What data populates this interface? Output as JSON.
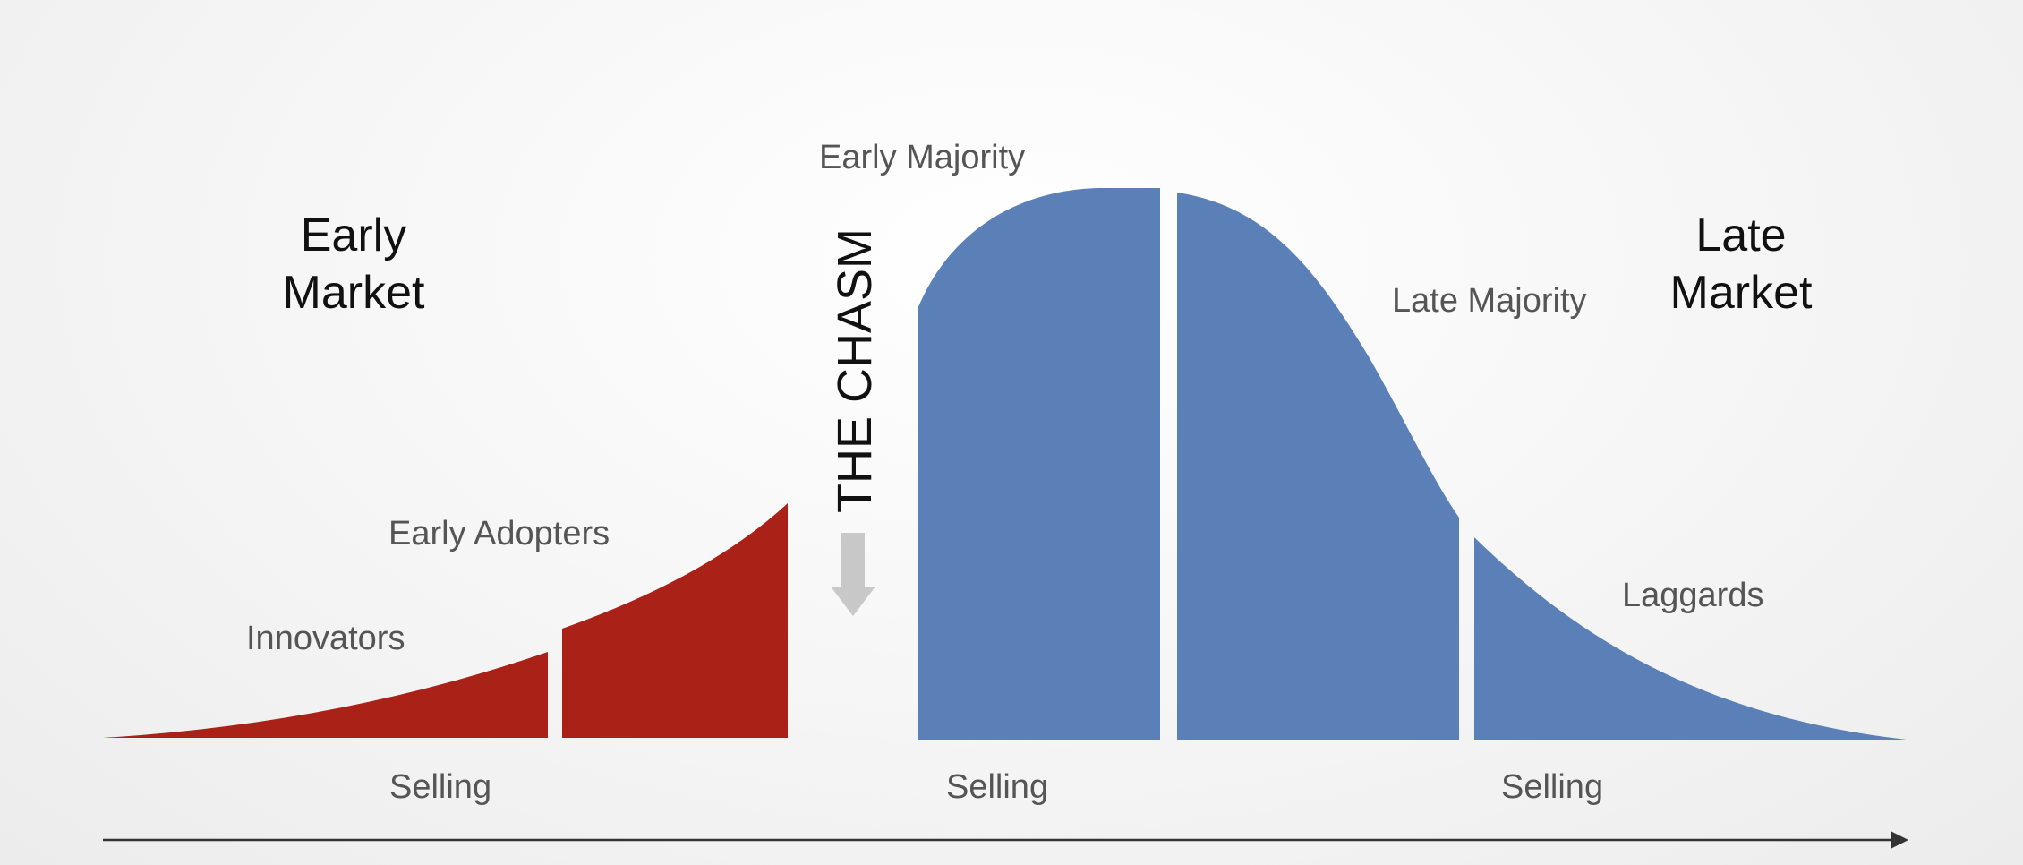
{
  "diagram": {
    "early_market": {
      "line1": "Early",
      "line2": "Market"
    },
    "late_market": {
      "line1": "Late",
      "line2": "Market"
    },
    "segments": {
      "innovators": "Innovators",
      "early_adopters": "Early Adopters",
      "early_majority": "Early Majority",
      "late_majority": "Late Majority",
      "laggards": "Laggards"
    },
    "chasm_label": "THE CHASM",
    "selling": {
      "left": "Selling",
      "middle": "Selling",
      "right": "Selling"
    },
    "colors": {
      "early_market_fill": "#AA2118",
      "mainstream_fill": "#5B80B7",
      "arrow": "#C8C8C8",
      "axis": "#333333"
    }
  }
}
